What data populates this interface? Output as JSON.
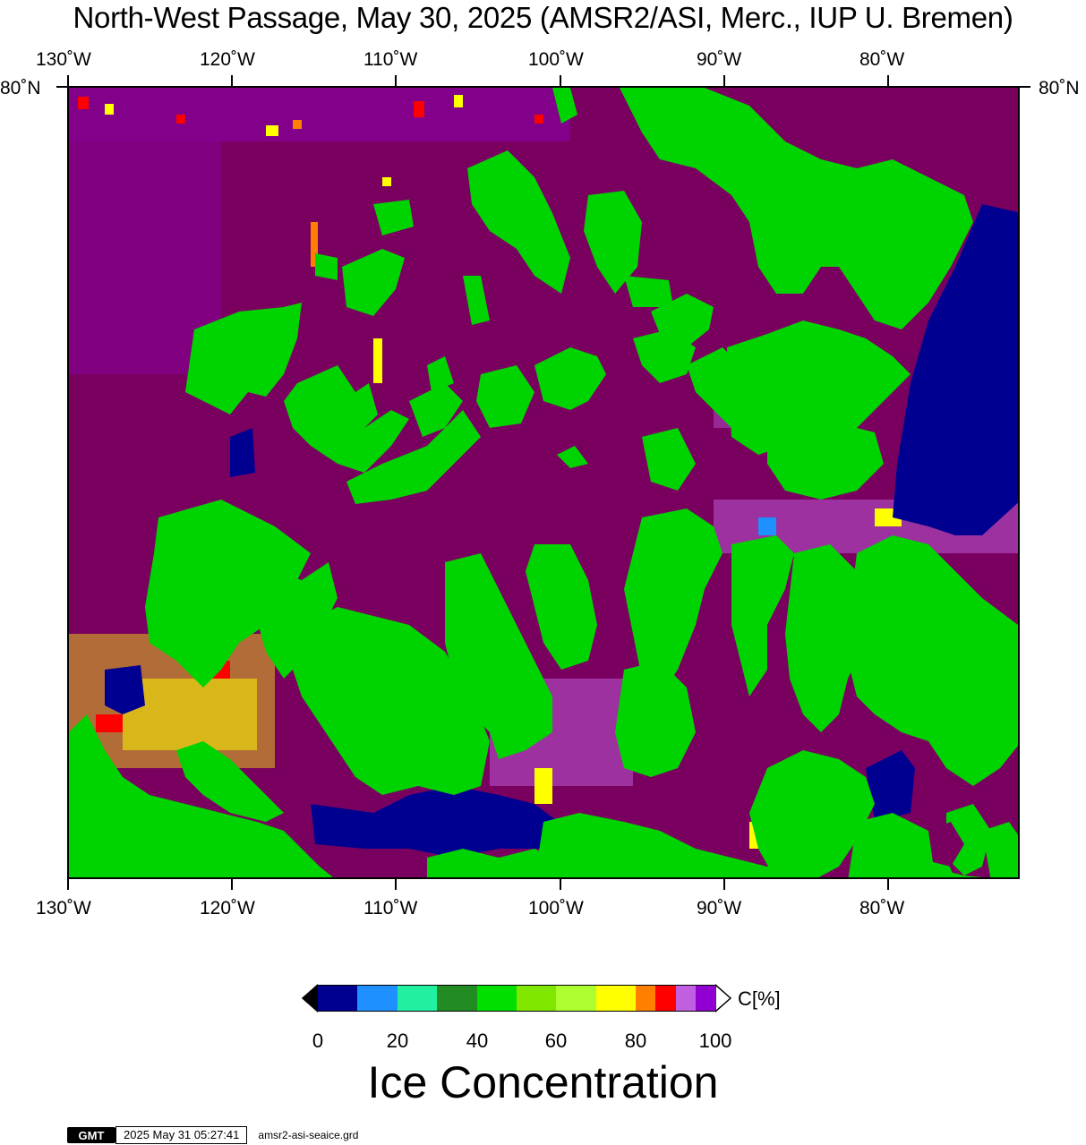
{
  "title": "North-West Passage, May 30, 2025 (AMSR2/ASI, Merc., IUP U. Bremen)",
  "map": {
    "lon_labels_top": [
      "130˚W",
      "120˚W",
      "110˚W",
      "100˚W",
      "90˚W",
      "80˚W"
    ],
    "lon_labels_bottom": [
      "130˚W",
      "120˚W",
      "110˚W",
      "100˚W",
      "90˚W",
      "80˚W"
    ],
    "lat_label_left": "80˚N",
    "lat_label_right": "80˚N",
    "lon_range": [
      -130,
      -72
    ],
    "colors": {
      "land": "#00d400",
      "ice_100": "#7a0060",
      "open_water": "#000090"
    }
  },
  "colorbar": {
    "title": "Ice Concentration",
    "unit": "C[%]",
    "tick_labels": [
      "0",
      "20",
      "40",
      "60",
      "80",
      "100"
    ],
    "range": [
      0,
      100
    ],
    "bins": [
      {
        "from": 0,
        "to": 10,
        "color": "#000090"
      },
      {
        "from": 10,
        "to": 20,
        "color": "#1e90ff"
      },
      {
        "from": 20,
        "to": 30,
        "color": "#20f0a0"
      },
      {
        "from": 30,
        "to": 40,
        "color": "#228b22"
      },
      {
        "from": 40,
        "to": 50,
        "color": "#00e000"
      },
      {
        "from": 50,
        "to": 60,
        "color": "#80e800"
      },
      {
        "from": 60,
        "to": 70,
        "color": "#adff2f"
      },
      {
        "from": 70,
        "to": 80,
        "color": "#ffff00"
      },
      {
        "from": 80,
        "to": 85,
        "color": "#ff8000"
      },
      {
        "from": 85,
        "to": 90,
        "color": "#ff0000"
      },
      {
        "from": 90,
        "to": 95,
        "color": "#c060e0"
      },
      {
        "from": 95,
        "to": 100,
        "color": "#9000d0"
      }
    ]
  },
  "footer": {
    "logo": "GMT",
    "timestamp": "2025 May 31 05:27:41",
    "filename": "amsr2-asi-seaice.grd"
  }
}
